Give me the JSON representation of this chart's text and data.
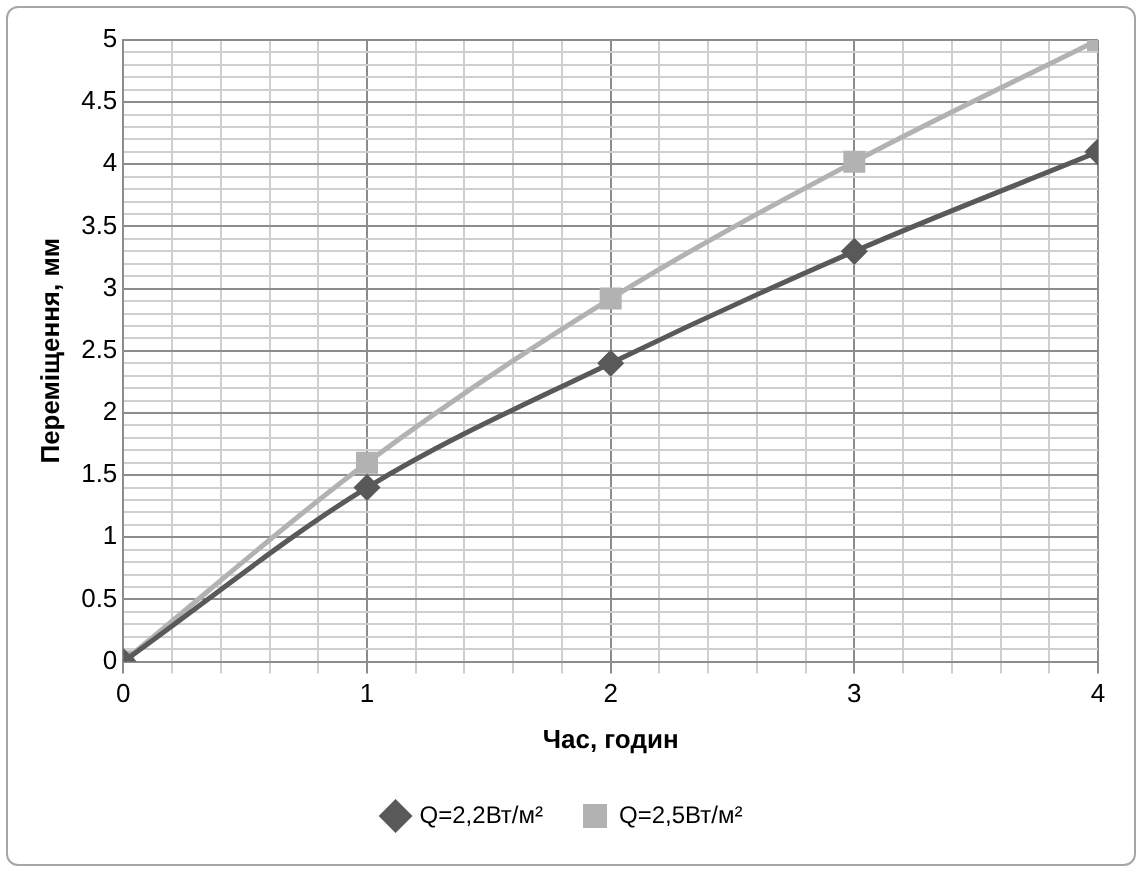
{
  "chart_data": {
    "type": "line",
    "xlabel": "Час, годин",
    "ylabel": "Переміщення, мм",
    "x": [
      0,
      1,
      2,
      3,
      4
    ],
    "series": [
      {
        "name": "Q=2,2Вт/м²",
        "color": "#595959",
        "marker": "diamond",
        "values": [
          0,
          1.4,
          2.4,
          3.3,
          4.1
        ]
      },
      {
        "name": "Q=2,5Вт/м²",
        "color": "#b2b2b2",
        "marker": "square",
        "values": [
          0,
          1.6,
          2.92,
          4.02,
          5.0
        ]
      }
    ],
    "xlim": [
      0,
      4
    ],
    "xticks": [
      0,
      {
        "value": 0.2,
        "label": null
      },
      {
        "value": 0.4,
        "label": null
      },
      {
        "value": 0.6,
        "label": null
      },
      {
        "value": 0.8,
        "label": null
      },
      1,
      {
        "value": 1.2,
        "label": null
      },
      {
        "value": 1.4,
        "label": null
      },
      {
        "value": 1.6,
        "label": null
      },
      {
        "value": 1.8,
        "label": null
      },
      2,
      {
        "value": 2.2,
        "label": null
      },
      {
        "value": 2.4,
        "label": null
      },
      {
        "value": 2.6,
        "label": null
      },
      {
        "value": 2.8,
        "label": null
      },
      3,
      {
        "value": 3.2,
        "label": null
      },
      {
        "value": 3.4,
        "label": null
      },
      {
        "value": 3.6,
        "label": null
      },
      {
        "value": 3.8,
        "label": null
      },
      4
    ],
    "ylim": [
      0,
      5
    ],
    "yticks": [
      0,
      {
        "value": 0.1,
        "label": null
      },
      {
        "value": 0.2,
        "label": null
      },
      {
        "value": 0.3,
        "label": null
      },
      {
        "value": 0.4,
        "label": null
      },
      0.5,
      {
        "value": 0.6,
        "label": null
      },
      {
        "value": 0.7,
        "label": null
      },
      {
        "value": 0.8,
        "label": null
      },
      {
        "value": 0.9,
        "label": null
      },
      1,
      {
        "value": 1.1,
        "label": null
      },
      {
        "value": 1.2,
        "label": null
      },
      {
        "value": 1.3,
        "label": null
      },
      {
        "value": 1.4,
        "label": null
      },
      1.5,
      {
        "value": 1.6,
        "label": null
      },
      {
        "value": 1.7,
        "label": null
      },
      {
        "value": 1.8,
        "label": null
      },
      {
        "value": 1.9,
        "label": null
      },
      2,
      {
        "value": 2.1,
        "label": null
      },
      {
        "value": 2.2,
        "label": null
      },
      {
        "value": 2.3,
        "label": null
      },
      {
        "value": 2.4,
        "label": null
      },
      2.5,
      {
        "value": 2.6,
        "label": null
      },
      {
        "value": 2.7,
        "label": null
      },
      {
        "value": 2.8,
        "label": null
      },
      {
        "value": 2.9,
        "label": null
      },
      3,
      {
        "value": 3.1,
        "label": null
      },
      {
        "value": 3.2,
        "label": null
      },
      {
        "value": 3.3,
        "label": null
      },
      {
        "value": 3.4,
        "label": null
      },
      3.5,
      {
        "value": 3.6,
        "label": null
      },
      {
        "value": 3.7,
        "label": null
      },
      {
        "value": 3.8,
        "label": null
      },
      {
        "value": 3.9,
        "label": null
      },
      4,
      {
        "value": 4.1,
        "label": null
      },
      {
        "value": 4.2,
        "label": null
      },
      {
        "value": 4.3,
        "label": null
      },
      {
        "value": 4.4,
        "label": null
      },
      4.5,
      {
        "value": 4.6,
        "label": null
      },
      {
        "value": 4.7,
        "label": null
      },
      {
        "value": 4.8,
        "label": null
      },
      {
        "value": 4.9,
        "label": null
      },
      5
    ],
    "grid": true,
    "legend": "bottom",
    "line_style": "solid"
  }
}
